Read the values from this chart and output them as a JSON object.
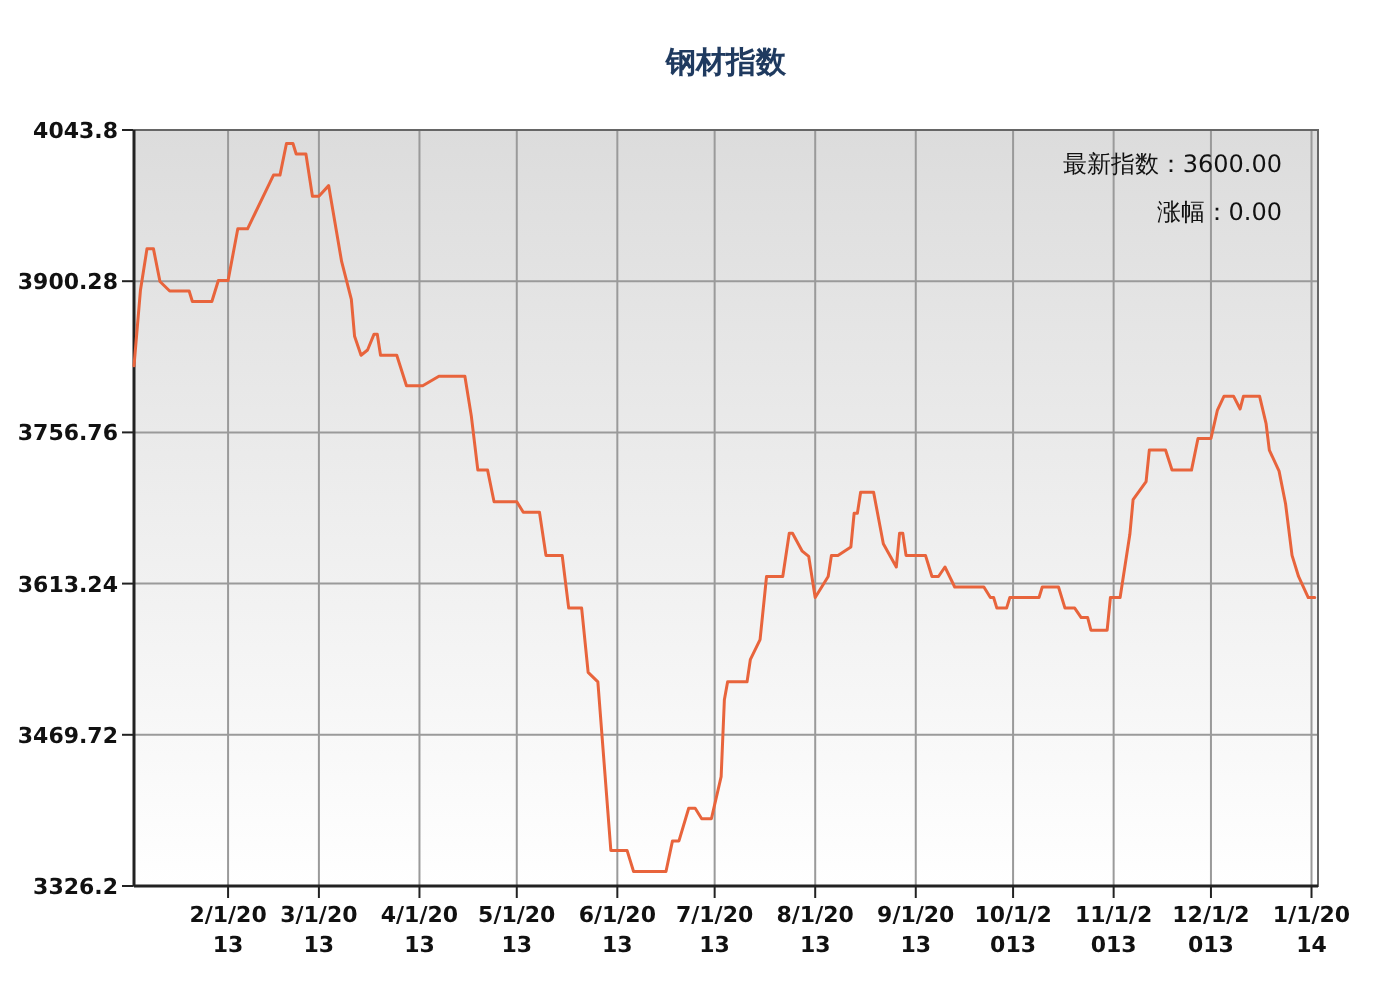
{
  "chart_data": {
    "type": "line",
    "title": "钢材指数",
    "annotations": [
      "最新指数：3600.00",
      "涨幅：0.00"
    ],
    "x": [
      "2013-01-03",
      "2013-01-05",
      "2013-01-07",
      "2013-01-09",
      "2013-01-11",
      "2013-01-14",
      "2013-01-20",
      "2013-01-21",
      "2013-01-27",
      "2013-01-29",
      "2013-02-01",
      "2013-02-04",
      "2013-02-07",
      "2013-02-15",
      "2013-02-17",
      "2013-02-19",
      "2013-02-21",
      "2013-02-22",
      "2013-02-25",
      "2013-02-27",
      "2013-03-01",
      "2013-03-04",
      "2013-03-08",
      "2013-03-11",
      "2013-03-12",
      "2013-03-14",
      "2013-03-16",
      "2013-03-18",
      "2013-03-19",
      "2013-03-20",
      "2013-03-25",
      "2013-03-28",
      "2013-04-02",
      "2013-04-07",
      "2013-04-15",
      "2013-04-17",
      "2013-04-19",
      "2013-04-22",
      "2013-04-24",
      "2013-05-01",
      "2013-05-03",
      "2013-05-08",
      "2013-05-10",
      "2013-05-15",
      "2013-05-17",
      "2013-05-21",
      "2013-05-23",
      "2013-05-26",
      "2013-05-30",
      "2013-06-04",
      "2013-06-06",
      "2013-06-16",
      "2013-06-18",
      "2013-06-20",
      "2013-06-23",
      "2013-06-25",
      "2013-06-27",
      "2013-06-30",
      "2013-07-03",
      "2013-07-04",
      "2013-07-05",
      "2013-07-11",
      "2013-07-12",
      "2013-07-15",
      "2013-07-17",
      "2013-07-22",
      "2013-07-24",
      "2013-07-25",
      "2013-07-28",
      "2013-07-30",
      "2013-08-01",
      "2013-08-05",
      "2013-08-06",
      "2013-08-08",
      "2013-08-12",
      "2013-08-13",
      "2013-08-14",
      "2013-08-15",
      "2013-08-19",
      "2013-08-22",
      "2013-08-26",
      "2013-08-27",
      "2013-08-28",
      "2013-08-29",
      "2013-09-04",
      "2013-09-06",
      "2013-09-08",
      "2013-09-10",
      "2013-09-13",
      "2013-09-22",
      "2013-09-24",
      "2013-09-25",
      "2013-09-26",
      "2013-09-29",
      "2013-09-30",
      "2013-10-09",
      "2013-10-10",
      "2013-10-15",
      "2013-10-17",
      "2013-10-20",
      "2013-10-22",
      "2013-10-24",
      "2013-10-25",
      "2013-10-30",
      "2013-10-31",
      "2013-11-03",
      "2013-11-06",
      "2013-11-07",
      "2013-11-11",
      "2013-11-12",
      "2013-11-17",
      "2013-11-19",
      "2013-11-25",
      "2013-11-27",
      "2013-12-01",
      "2013-12-03",
      "2013-12-05",
      "2013-12-08",
      "2013-12-10",
      "2013-12-11",
      "2013-12-16",
      "2013-12-18",
      "2013-12-19",
      "2013-12-22",
      "2013-12-24",
      "2013-12-26",
      "2013-12-28",
      "2013-12-31",
      "2014-01-02"
    ],
    "series": [
      {
        "color": "#e8643c",
        "values": [
          3820,
          3892,
          3931,
          3931,
          3900,
          3891,
          3891,
          3881,
          3881,
          3901,
          3901,
          3950,
          3950,
          4001,
          4001,
          4031,
          4031,
          4021,
          4021,
          3981,
          3981,
          3991,
          3919,
          3883,
          3848,
          3830,
          3835,
          3850,
          3850,
          3830,
          3830,
          3801,
          3801,
          3810,
          3810,
          3772,
          3721,
          3721,
          3691,
          3691,
          3681,
          3681,
          3640,
          3640,
          3590,
          3590,
          3529,
          3520,
          3360,
          3360,
          3340,
          3340,
          3369,
          3369,
          3400,
          3400,
          3390,
          3390,
          3430,
          3503,
          3520,
          3520,
          3541,
          3560,
          3620,
          3620,
          3661,
          3661,
          3644,
          3639,
          3600,
          3620,
          3640,
          3640,
          3648,
          3680,
          3680,
          3700,
          3700,
          3651,
          3629,
          3661,
          3661,
          3640,
          3640,
          3620,
          3620,
          3629,
          3610,
          3610,
          3600,
          3600,
          3590,
          3590,
          3600,
          3600,
          3610,
          3610,
          3590,
          3590,
          3581,
          3581,
          3569,
          3569,
          3600,
          3600,
          3660,
          3693,
          3710,
          3740,
          3740,
          3721,
          3721,
          3751,
          3751,
          3778,
          3791,
          3791,
          3779,
          3791,
          3791,
          3765,
          3740,
          3720,
          3689,
          3640,
          3620,
          3600,
          3600
        ]
      }
    ],
    "xlim": [
      "2013-01-03",
      "2014-01-03"
    ],
    "xticks": [
      {
        "value": "2013-02-01",
        "label": "2/1/2013"
      },
      {
        "value": "2013-03-01",
        "label": "3/1/2013"
      },
      {
        "value": "2013-04-01",
        "label": "4/1/2013"
      },
      {
        "value": "2013-05-01",
        "label": "5/1/2013"
      },
      {
        "value": "2013-06-01",
        "label": "6/1/2013"
      },
      {
        "value": "2013-07-01",
        "label": "7/1/2013"
      },
      {
        "value": "2013-08-01",
        "label": "8/1/2013"
      },
      {
        "value": "2013-09-01",
        "label": "9/1/2013"
      },
      {
        "value": "2013-10-01",
        "label": "10/1/2013"
      },
      {
        "value": "2013-11-01",
        "label": "11/1/2013"
      },
      {
        "value": "2013-12-01",
        "label": "12/1/2013"
      },
      {
        "value": "2014-01-01",
        "label": "1/1/2014"
      }
    ],
    "ylim": [
      3326.2,
      4043.8
    ],
    "yticks": [
      3326.2,
      3469.72,
      3613.24,
      3756.76,
      3900.28,
      4043.8
    ],
    "grid": true,
    "marker": "none",
    "line_style": "solid"
  }
}
